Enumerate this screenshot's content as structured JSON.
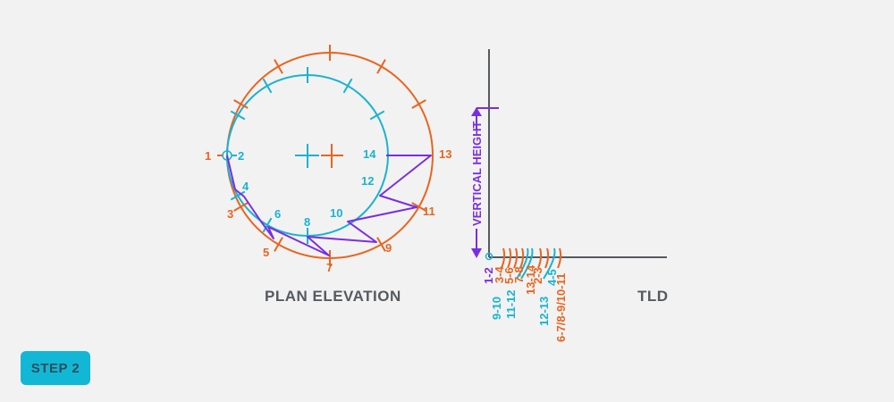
{
  "colors": {
    "background": "#f2f2f2",
    "orange": "#e8651f",
    "cyan": "#1ab3cf",
    "purple": "#7b2ee0",
    "dark": "#555a5f",
    "axis": "#555a5f"
  },
  "captions": {
    "plan": "PLAN ELEVATION",
    "tld": "TLD"
  },
  "vertical_height": "VERTICAL HEIGHT",
  "step_button": {
    "label": "STEP 2",
    "bg": "#13b7d6",
    "fg": "#2f4d5c"
  },
  "plan_labels": {
    "orange": [
      "1",
      "3",
      "5",
      "7",
      "9",
      "11",
      "13"
    ],
    "cyan": [
      "2",
      "4",
      "6",
      "8",
      "10",
      "12",
      "14"
    ]
  },
  "tld_labels": [
    "1-2",
    "3-4",
    "5-6",
    "7-8",
    "13-14",
    "2-3",
    "4-5",
    "9-10",
    "11-12",
    "12-13",
    "6-7/8-9/10-11"
  ]
}
